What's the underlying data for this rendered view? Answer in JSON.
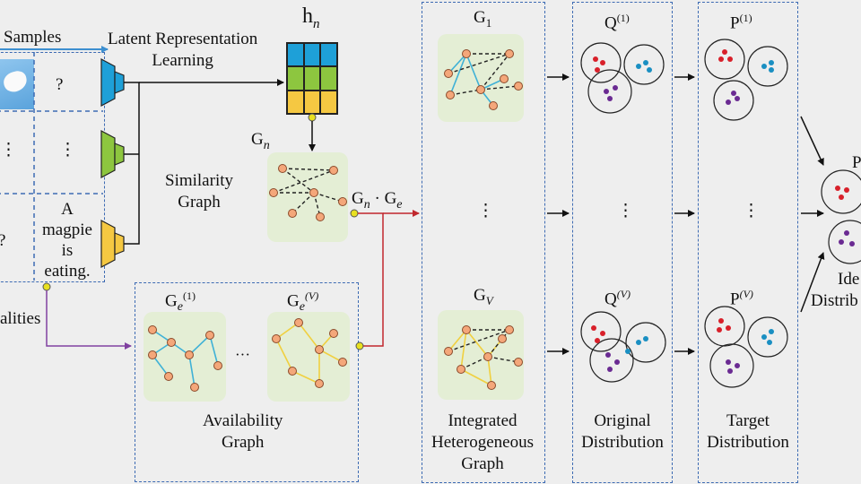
{
  "labels": {
    "samples": "Samples",
    "latent_line1": "Latent Representation",
    "latent_line2": "Learning",
    "hn_base": "h",
    "hn_sub": "n",
    "gn_base": "G",
    "gn_sub": "n",
    "similarity_line1": "Similarity",
    "similarity_line2": "Graph",
    "gn_ge": "G",
    "gn_ge_sub": "n",
    "gn_ge_dot": "·",
    "gn_ge_e": "G",
    "gn_ge_e_sub": "e",
    "modalities_partial": "alities",
    "ge1_base": "G",
    "ge1_sub": "e",
    "ge1_sup": "(1)",
    "gev_base": "G",
    "gev_sub": "e",
    "gev_sup": "(V)",
    "ellipsis_h": "···",
    "availability_line1": "Availability",
    "availability_line2": "Graph",
    "g1_base": "G",
    "g1_sub": "1",
    "gv_base": "G",
    "gv_sub": "V",
    "vdots": "⋮",
    "integrated_line1": "Integrated",
    "integrated_line2": "Heterogeneous",
    "integrated_line3": "Graph",
    "q1_base": "Q",
    "q1_sup": "(1)",
    "qv_base": "Q",
    "qv_sup": "(V)",
    "original_line1": "Original",
    "original_line2": "Distribution",
    "p1_base": "P",
    "p1_sup": "(1)",
    "pv_base": "P",
    "pv_sup": "(V)",
    "target_line1": "Target",
    "target_line2": "Distribution",
    "ideal_top": "P",
    "ideal_line1": "Ide",
    "ideal_line2": "Distrib"
  },
  "table": {
    "cell_r1c2": "?",
    "cell_r2c1": "⋮",
    "cell_r2c2": "⋮",
    "cell_r3c1": "?",
    "text_line1": "A",
    "text_line2": "magpie",
    "text_line3": "is",
    "text_line4": "eating."
  },
  "colors": {
    "background": "#eeeeee",
    "dashed_box": "#3d6bb3",
    "encoder_blue": "#1ea0d8",
    "encoder_green": "#8dc63f",
    "encoder_yellow": "#f5c842",
    "node_fill": "#f4a77a",
    "node_stroke": "#8b4a2b",
    "edge_cyan": "#3fb1d6",
    "edge_yellow": "#f0d040",
    "arrow_red": "#c0272d",
    "arrow_purple": "#8040a0",
    "arrow_blue": "#3d8fd0",
    "dot_red": "#d8202a",
    "dot_blue": "#1a8fc2",
    "dot_purple": "#6a2a92",
    "panel_green": "#e4eed5"
  }
}
